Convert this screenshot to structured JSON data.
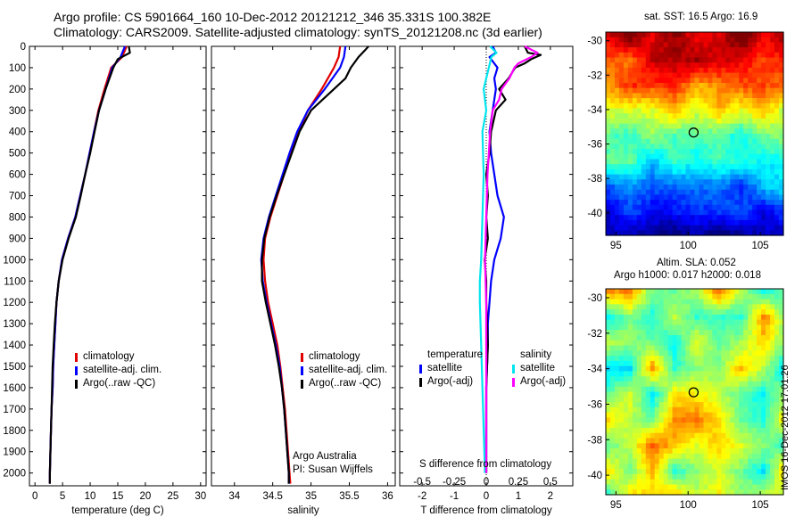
{
  "titles": {
    "line1": "Argo profile: CS 5901664_160 10-Dec-2012 20121212_346 35.331S 100.382E",
    "line2": "Climatology: CARS2009. Satellite-adjusted climatology: synTS_20121208.nc (3d earlier)"
  },
  "colors": {
    "climatology": "#e00000",
    "satellite": "#0000ff",
    "argo": "#000000",
    "sat_sal": "#00e5ee",
    "argo_sal": "#ff00ff"
  },
  "legend_ts": {
    "climatology": "climatology",
    "satellite": "satellite-adj. clim.",
    "argo": "Argo(..raw -QC)"
  },
  "legend_diff": {
    "temp_header": "temperature",
    "sal_header": "salinity",
    "satellite": "satellite",
    "argo": "Argo(-adj)"
  },
  "credits": {
    "line1": "Argo Australia",
    "line2": "PI: Susan Wijffels"
  },
  "maps": {
    "sst_title": "sat. SST: 16.5 Argo: 16.9",
    "sla_title1": "Altim. SLA: 0.052",
    "sla_title2": "Argo h1000: 0.017 h2000: 0.018",
    "stamp": "IMOS 16-Dec-2012 17:01:26",
    "lat_ticks": [
      "-30",
      "-32",
      "-34",
      "-36",
      "-38",
      "-40"
    ],
    "lon_ticks": [
      "95",
      "100",
      "105"
    ],
    "float_lat": -35.331,
    "float_lon": 100.382
  },
  "chart_data": [
    {
      "type": "line",
      "xlabel": "temperature (deg C)",
      "xlim": [
        -1,
        31
      ],
      "xticks": [
        "0",
        "5",
        "10",
        "15",
        "20",
        "25",
        "30"
      ],
      "ylim": [
        0,
        2060
      ],
      "yticks": [
        "0",
        "100",
        "200",
        "300",
        "400",
        "500",
        "600",
        "700",
        "800",
        "900",
        "1000",
        "1100",
        "1200",
        "1300",
        "1400",
        "1500",
        "1600",
        "1700",
        "1800",
        "1900",
        "2000"
      ],
      "series": [
        {
          "name": "climatology",
          "depth": [
            0,
            50,
            100,
            200,
            300,
            400,
            500,
            600,
            700,
            800,
            900,
            1000,
            1100,
            1200,
            1300,
            1400,
            1500,
            1600,
            1700,
            1800,
            1900,
            2000,
            2050
          ],
          "values": [
            16.6,
            15.8,
            13.8,
            12.6,
            11.5,
            10.7,
            9.9,
            9.1,
            8.2,
            7.3,
            6.0,
            4.9,
            4.3,
            3.9,
            3.7,
            3.5,
            3.3,
            3.2,
            3.0,
            2.9,
            2.8,
            2.7,
            2.7
          ]
        },
        {
          "name": "satellite-adj. clim.",
          "depth": [
            0,
            50,
            100,
            200,
            300,
            400,
            500,
            600,
            700,
            800,
            900,
            1000,
            1100,
            1200,
            1300,
            1400,
            1500,
            1600,
            1700,
            1800,
            1900,
            2000,
            2050
          ],
          "values": [
            16.3,
            15.5,
            14.0,
            12.8,
            11.6,
            10.7,
            9.9,
            9.1,
            8.2,
            7.3,
            6.0,
            4.9,
            4.3,
            3.9,
            3.7,
            3.5,
            3.3,
            3.2,
            3.0,
            2.9,
            2.8,
            2.7,
            2.7
          ]
        },
        {
          "name": "Argo(..raw -QC)",
          "depth": [
            0,
            30,
            60,
            100,
            200,
            300,
            400,
            500,
            600,
            700,
            800,
            900,
            1000,
            1100,
            1200,
            1300,
            1400,
            1500,
            1600,
            1700,
            1800,
            1900,
            2000,
            2050
          ],
          "values": [
            17.0,
            17.2,
            15.0,
            14.2,
            12.8,
            11.6,
            10.8,
            10.0,
            9.1,
            8.3,
            7.4,
            6.1,
            5.0,
            4.3,
            3.9,
            3.6,
            3.4,
            3.2,
            3.1,
            3.0,
            2.9,
            2.8,
            2.7,
            2.7
          ]
        }
      ]
    },
    {
      "type": "line",
      "xlabel": "salinity",
      "xlim": [
        33.7,
        36.1
      ],
      "xticks": [
        "34",
        "34.5",
        "35",
        "35.5",
        "36"
      ],
      "ylim": [
        0,
        2060
      ],
      "series": [
        {
          "name": "climatology",
          "depth": [
            0,
            50,
            100,
            200,
            300,
            400,
            500,
            600,
            700,
            800,
            900,
            1000,
            1100,
            1200,
            1300,
            1400,
            1500,
            1600,
            1700,
            1800,
            1900,
            2000,
            2050
          ],
          "values": [
            35.38,
            35.36,
            35.3,
            35.14,
            34.96,
            34.84,
            34.74,
            34.65,
            34.56,
            34.47,
            34.4,
            34.38,
            34.4,
            34.44,
            34.5,
            34.56,
            34.6,
            34.63,
            34.66,
            34.68,
            34.7,
            34.72,
            34.73
          ]
        },
        {
          "name": "satellite-adj. clim.",
          "depth": [
            0,
            50,
            100,
            200,
            300,
            400,
            500,
            600,
            700,
            800,
            900,
            1000,
            1100,
            1200,
            1300,
            1400,
            1500,
            1600,
            1700,
            1800,
            1900,
            2000,
            2050
          ],
          "values": [
            35.45,
            35.43,
            35.38,
            35.18,
            34.96,
            34.82,
            34.72,
            34.63,
            34.54,
            34.45,
            34.38,
            34.35,
            34.37,
            34.42,
            34.48,
            34.54,
            34.59,
            34.62,
            34.65,
            34.67,
            34.69,
            34.71,
            34.71
          ]
        },
        {
          "name": "Argo(..raw -QC)",
          "depth": [
            0,
            20,
            50,
            100,
            150,
            200,
            300,
            400,
            500,
            600,
            700,
            800,
            900,
            1000,
            1100,
            1200,
            1300,
            1400,
            1500,
            1600,
            1700,
            1800,
            1900,
            2000,
            2050
          ],
          "values": [
            35.75,
            35.7,
            35.62,
            35.52,
            35.45,
            35.3,
            35.0,
            34.85,
            34.75,
            34.65,
            34.55,
            34.46,
            34.39,
            34.36,
            34.36,
            34.41,
            34.47,
            34.53,
            34.58,
            34.62,
            34.65,
            34.67,
            34.69,
            34.71,
            34.71
          ]
        }
      ]
    },
    {
      "type": "line",
      "xlabel": "T difference from climatology",
      "top_label": "S difference from climatology",
      "xlim": [
        -2.7,
        2.7
      ],
      "xticks": [
        "-2",
        "-1",
        "0",
        "1",
        "2"
      ],
      "xticks_top": [
        "-0.5",
        "-0.25",
        "0",
        "0.25",
        "0.5"
      ],
      "ylim": [
        0,
        2060
      ],
      "series": [
        {
          "name": "temperature satellite",
          "depth": [
            0,
            30,
            50,
            100,
            150,
            200,
            300,
            400,
            500,
            600,
            700,
            800,
            900,
            1000,
            1100,
            1200,
            1300,
            1400,
            1600,
            1800,
            2000
          ],
          "values": [
            0.2,
            0.3,
            0.1,
            0.35,
            0.25,
            0.3,
            0.2,
            0.1,
            0.15,
            0.25,
            0.35,
            0.55,
            0.45,
            0.25,
            0.15,
            0.1,
            0.05,
            0.05,
            0.0,
            0.0,
            0.0
          ]
        },
        {
          "name": "temperature Argo(-adj)",
          "depth": [
            0,
            30,
            40,
            60,
            80,
            100,
            150,
            200,
            250,
            300,
            400,
            500,
            600,
            700,
            800,
            900,
            1000,
            1100,
            1200,
            1400,
            1600,
            1800,
            2000
          ],
          "values": [
            1.2,
            1.3,
            1.7,
            1.4,
            1.2,
            0.9,
            0.7,
            0.4,
            0.6,
            0.3,
            0.15,
            0.1,
            0.0,
            0.05,
            0.0,
            0.05,
            -0.05,
            0.0,
            0.0,
            0.05,
            0.0,
            0.0,
            0.0
          ]
        },
        {
          "name": "salinity satellite",
          "depth": [
            0,
            30,
            50,
            100,
            200,
            300,
            400,
            600,
            800,
            1000,
            1100,
            1200,
            1400,
            1600,
            1800,
            2000
          ],
          "values": [
            0.03,
            0.08,
            0.04,
            0.02,
            -0.02,
            0.0,
            -0.03,
            -0.02,
            -0.03,
            -0.04,
            -0.05,
            -0.05,
            -0.04,
            -0.03,
            -0.02,
            -0.01
          ]
        },
        {
          "name": "salinity Argo(-adj)",
          "depth": [
            0,
            30,
            50,
            80,
            100,
            150,
            200,
            250,
            300,
            400,
            500,
            600,
            800,
            1000,
            1200,
            1400,
            1600,
            1800,
            2000
          ],
          "values": [
            0.3,
            0.4,
            0.35,
            0.25,
            0.22,
            0.18,
            0.12,
            0.1,
            0.05,
            0.03,
            0.02,
            0.01,
            0.0,
            -0.01,
            0.0,
            0.0,
            0.0,
            0.0,
            0.0
          ]
        }
      ]
    }
  ]
}
